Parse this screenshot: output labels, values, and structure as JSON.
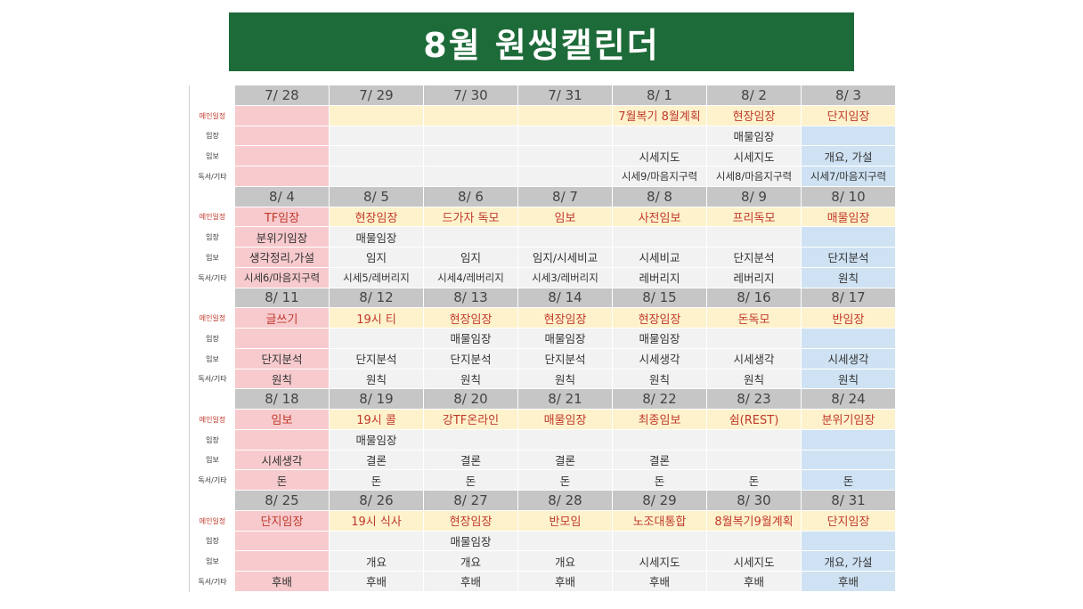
{
  "title": "8월 원씽캘린더",
  "row_labels": [
    "메인일정",
    "임장",
    "임보",
    "독서/기타"
  ],
  "weeks": [
    {
      "dates": [
        "7/ 28",
        "7/ 29",
        "7/ 30",
        "7/ 31",
        "8/ 1",
        "8/ 2",
        "8/ 3"
      ],
      "rows": [
        [
          "",
          "",
          "",
          "",
          "7월복기 8월계획",
          "현장임장",
          "단지임장"
        ],
        [
          "",
          "",
          "",
          "",
          "",
          "매물임장",
          ""
        ],
        [
          "",
          "",
          "",
          "",
          "시세지도",
          "시세지도",
          "개요, 가설"
        ],
        [
          "",
          "",
          "",
          "",
          "시세9/마음지구력",
          "시세8/마음지구력",
          "시세7/마음지구력"
        ]
      ]
    },
    {
      "dates": [
        "8/ 4",
        "8/ 5",
        "8/ 6",
        "8/ 7",
        "8/ 8",
        "8/ 9",
        "8/ 10"
      ],
      "rows": [
        [
          "TF임장",
          "현장임장",
          "드가자 독모",
          "임보",
          "사전임보",
          "프리독모",
          "매물임장"
        ],
        [
          "분위기임장",
          "매물임장",
          "",
          "",
          "",
          "",
          ""
        ],
        [
          "생각정리,가설",
          "임지",
          "임지",
          "임지/시세비교",
          "시세비교",
          "단지분석",
          "단지분석"
        ],
        [
          "시세6/마음지구력",
          "시세5/레버리지",
          "시세4/레버리지",
          "시세3/레버리지",
          "레버리지",
          "레버리지",
          "원칙"
        ]
      ]
    },
    {
      "dates": [
        "8/ 11",
        "8/ 12",
        "8/ 13",
        "8/ 14",
        "8/ 15",
        "8/ 16",
        "8/ 17"
      ],
      "rows": [
        [
          "글쓰기",
          "19시 티",
          "현장임장",
          "현장임장",
          "현장임장",
          "돈독모",
          "반임장"
        ],
        [
          "",
          "",
          "매물임장",
          "매물임장",
          "매물임장",
          "",
          ""
        ],
        [
          "단지분석",
          "단지분석",
          "단지분석",
          "단지분석",
          "시세생각",
          "시세생각",
          "시세생각"
        ],
        [
          "원칙",
          "원칙",
          "원칙",
          "원칙",
          "원칙",
          "원칙",
          "원칙"
        ]
      ]
    },
    {
      "dates": [
        "8/ 18",
        "8/ 19",
        "8/ 20",
        "8/ 21",
        "8/ 22",
        "8/ 23",
        "8/ 24"
      ],
      "rows": [
        [
          "임보",
          "19시 콜",
          "강TF온라인",
          "매물임장",
          "최종임보",
          "쉼(REST)",
          "분위기임장"
        ],
        [
          "",
          "매물임장",
          "",
          "",
          "",
          "",
          ""
        ],
        [
          "시세생각",
          "결론",
          "결론",
          "결론",
          "결론",
          "",
          ""
        ],
        [
          "돈",
          "돈",
          "돈",
          "돈",
          "돈",
          "돈",
          "돈"
        ]
      ]
    },
    {
      "dates": [
        "8/ 25",
        "8/ 26",
        "8/ 27",
        "8/ 28",
        "8/ 29",
        "8/ 30",
        "8/ 31"
      ],
      "rows": [
        [
          "단지임장",
          "19시 식사",
          "현장임장",
          "반모임",
          "노조대통합",
          "8월복기9월계획",
          "단지임장"
        ],
        [
          "",
          "",
          "매물임장",
          "",
          "",
          "",
          ""
        ],
        [
          "",
          "개요",
          "개요",
          "개요",
          "시세지도",
          "시세지도",
          "개요, 가설"
        ],
        [
          "후배",
          "후배",
          "후배",
          "후배",
          "후배",
          "후배",
          "후배"
        ]
      ]
    }
  ]
}
